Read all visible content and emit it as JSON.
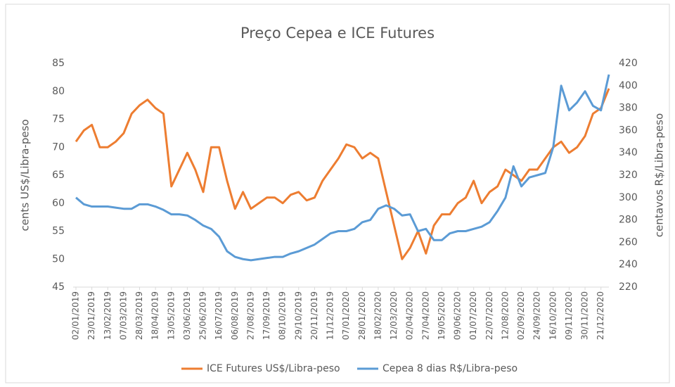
{
  "chart_data": {
    "type": "line",
    "title": "Preço Cepea e ICE Futures",
    "y_label": "cents US$/Libra-peso",
    "y2_label": "centavos R$/Libra-peso",
    "categories": [
      "02/01/2019",
      null,
      "23/01/2019",
      null,
      "13/02/2019",
      null,
      "07/03/2019",
      null,
      "28/03/2019",
      null,
      "18/04/2019",
      null,
      "13/05/2019",
      null,
      "03/06/2019",
      null,
      "25/06/2019",
      null,
      "16/07/2019",
      null,
      "06/08/2019",
      null,
      "27/08/2019",
      null,
      "17/09/2019",
      null,
      "08/10/2019",
      null,
      "29/10/2019",
      null,
      "20/11/2019",
      null,
      "11/12/2019",
      null,
      "07/01/2020",
      null,
      "28/01/2020",
      null,
      "18/02/2020",
      null,
      "12/03/2020",
      null,
      "02/04/2020",
      null,
      "27/04/2020",
      null,
      "19/05/2020",
      null,
      "09/06/2020",
      null,
      "01/07/2020",
      null,
      "22/07/2020",
      null,
      "12/08/2020",
      null,
      "02/09/2020",
      null,
      "24/09/2020",
      null,
      "16/10/2020",
      null,
      "09/11/2020",
      null,
      "30/11/2020",
      null,
      "21/12/2020",
      null
    ],
    "series": [
      {
        "name": "ICE Futures US$/Libra-peso",
        "color": "#ed7d31",
        "axis": "y",
        "values": [
          71,
          73,
          74,
          70,
          70,
          71,
          72.5,
          76,
          77.5,
          78.5,
          77,
          76,
          63,
          66,
          69,
          66,
          62,
          70,
          70,
          64,
          59,
          62,
          59,
          60,
          61,
          61,
          60,
          61.5,
          62,
          60.5,
          61,
          64,
          66,
          68,
          70.5,
          70,
          68,
          69,
          68,
          62,
          56,
          50,
          52,
          55,
          51,
          56,
          58,
          58,
          60,
          61,
          64,
          60,
          62,
          63,
          66,
          65,
          64,
          66,
          66,
          68,
          70,
          71,
          69,
          70,
          72,
          76,
          77,
          80.5
        ]
      },
      {
        "name": "Cepea 8 dias R$/Libra-peso",
        "color": "#5b9bd5",
        "axis": "y2",
        "values": [
          300,
          294,
          292,
          292,
          292,
          291,
          290,
          290,
          294,
          294,
          292,
          289,
          285,
          285,
          284,
          280,
          275,
          272,
          265,
          252,
          247,
          245,
          244,
          245,
          246,
          247,
          247,
          250,
          252,
          255,
          258,
          263,
          268,
          270,
          270,
          272,
          278,
          280,
          290,
          293,
          290,
          284,
          285,
          270,
          272,
          262,
          262,
          268,
          270,
          270,
          272,
          274,
          278,
          288,
          300,
          328,
          310,
          318,
          320,
          322,
          345,
          400,
          378,
          385,
          395,
          382,
          378,
          410
        ]
      }
    ],
    "ylim": [
      45,
      85
    ],
    "yticks": [
      45,
      50,
      55,
      60,
      65,
      70,
      75,
      80,
      85
    ],
    "y2lim": [
      220,
      420
    ],
    "y2ticks": [
      220,
      240,
      260,
      280,
      300,
      320,
      340,
      360,
      380,
      400,
      420
    ],
    "legend": "bottom"
  }
}
